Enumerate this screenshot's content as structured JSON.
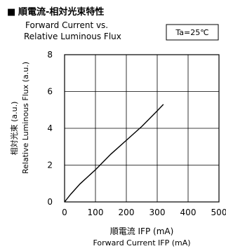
{
  "heading": {
    "bullet": "■",
    "title_jp": "順電流-相対光束特性",
    "title_en_line1": "Forward Current vs.",
    "title_en_line2": "Relative Luminous Flux"
  },
  "condition_box": "Ta=25℃",
  "chart_data": {
    "type": "line",
    "title": "順電流-相対光束特性 Forward Current vs. Relative Luminous Flux",
    "xlabel_jp": "順電流  IFP (mA)",
    "xlabel_en": "Forward Current  IFP (mA)",
    "ylabel_jp": "相対光束 (a.u.)",
    "ylabel_en": "Relative Luminous Flux (a.u.)",
    "xlim": [
      0,
      500
    ],
    "ylim": [
      0,
      8
    ],
    "x_ticks": [
      0,
      100,
      200,
      300,
      400,
      500
    ],
    "y_ticks": [
      0,
      2,
      4,
      6,
      8
    ],
    "grid": true,
    "series": [
      {
        "x": [
          0,
          20,
          50,
          100,
          150,
          200,
          250,
          300,
          320
        ],
        "y": [
          0,
          0.42,
          0.98,
          1.75,
          2.6,
          3.35,
          4.1,
          4.95,
          5.3
        ]
      }
    ]
  },
  "colors": {
    "line": "#000000",
    "grid": "#000000",
    "background": "#ffffff"
  }
}
